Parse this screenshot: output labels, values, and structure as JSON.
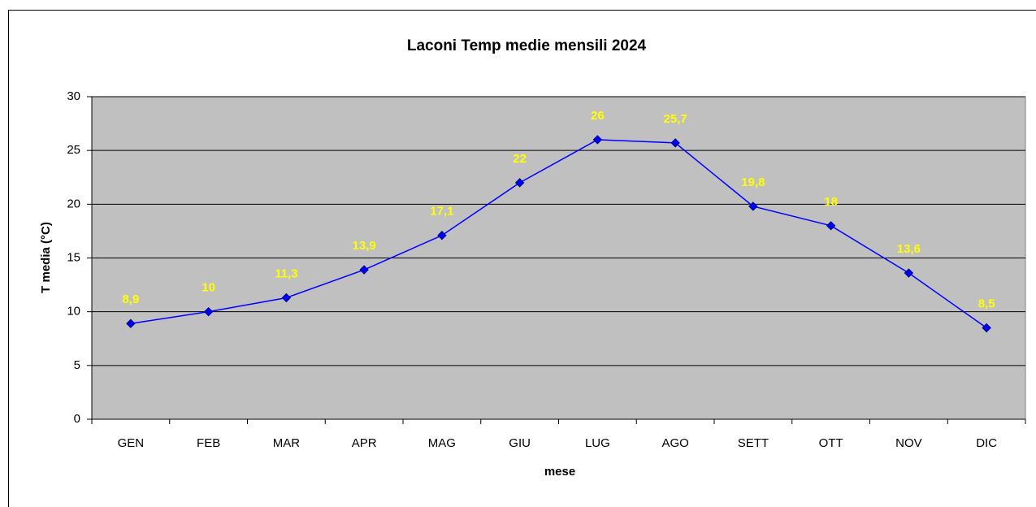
{
  "chart_data": {
    "type": "line",
    "title": "Laconi Temp medie mensili 2024",
    "x_label": "mese",
    "y_label": "T media (°C)",
    "categories": [
      "GEN",
      "FEB",
      "MAR",
      "APR",
      "MAG",
      "GIU",
      "LUG",
      "AGO",
      "SETT",
      "OTT",
      "NOV",
      "DIC"
    ],
    "series": [
      {
        "name": "T media",
        "color": "#0000ff",
        "values": [
          8.9,
          10,
          11.3,
          13.9,
          17.1,
          22,
          26,
          25.7,
          19.8,
          18,
          13.6,
          8.5
        ],
        "value_labels": [
          "8,9",
          "10",
          "11,3",
          "13,9",
          "17,1",
          "22",
          "26",
          "25,7",
          "19,8",
          "18",
          "13,6",
          "8,5"
        ]
      }
    ],
    "ylim": [
      0,
      30
    ],
    "yticks": [
      0,
      5,
      10,
      15,
      20,
      25,
      30
    ],
    "grid": true,
    "plot_background": "#c0c0c0"
  }
}
